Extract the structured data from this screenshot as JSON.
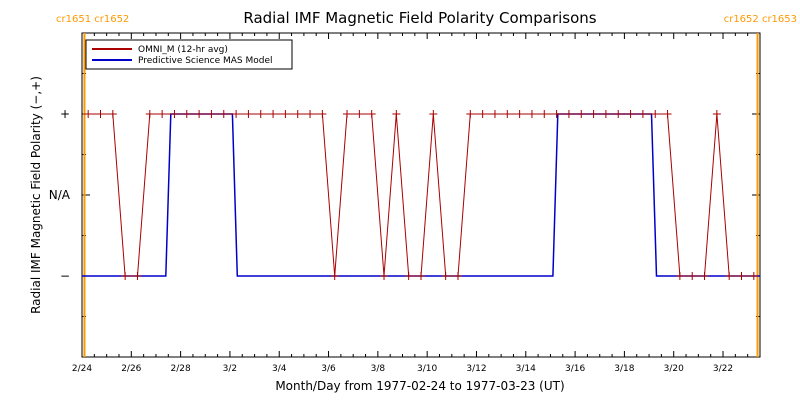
{
  "chart_data": {
    "type": "line",
    "title": "Radial IMF Magnetic Field Polarity Comparisons",
    "xlabel": "Month/Day from 1977-02-24 to 1977-03-23 (UT)",
    "ylabel": "Radial IMF Magnetic Field Polarity (−,+)",
    "x_tick_labels": [
      "2/24",
      "2/26",
      "2/28",
      "3/2",
      "3/4",
      "3/6",
      "3/8",
      "3/10",
      "3/12",
      "3/14",
      "3/16",
      "3/18",
      "3/20",
      "3/22"
    ],
    "y_tick_labels": [
      {
        "label": "+",
        "value": 1
      },
      {
        "label": "N/A",
        "value": 0
      },
      {
        "label": "−",
        "value": -1
      }
    ],
    "xlim_days": [
      0,
      27.5
    ],
    "ylim": [
      -2,
      2
    ],
    "carrington_markers": [
      {
        "day": 0.1,
        "text": "cr1651  cr1652",
        "color": "#ff9900"
      },
      {
        "day": 27.4,
        "text": "cr1652  cr1653",
        "color": "#ff9900"
      }
    ],
    "legend_position": "top-left",
    "series": [
      {
        "name": "OMNI_M (12-hr avg)",
        "color": "#aa0000",
        "marker": "+",
        "x_days": [
          0.25,
          0.75,
          1.25,
          1.75,
          2.25,
          2.75,
          3.25,
          3.75,
          4.25,
          4.75,
          5.25,
          5.75,
          6.25,
          6.75,
          7.25,
          7.75,
          8.25,
          8.75,
          9.25,
          9.75,
          10.25,
          10.75,
          11.25,
          11.75,
          12.25,
          12.75,
          13.25,
          13.75,
          14.25,
          14.75,
          15.25,
          15.75,
          16.25,
          16.75,
          17.25,
          17.75,
          18.25,
          18.75,
          19.25,
          19.75,
          20.25,
          20.75,
          21.25,
          21.75,
          22.25,
          22.75,
          23.25,
          23.75,
          24.25,
          24.75,
          25.25,
          25.75,
          26.25,
          26.75,
          27.25
        ],
        "values": [
          1,
          1,
          1,
          -1,
          -1,
          1,
          1,
          1,
          1,
          1,
          1,
          1,
          1,
          1,
          1,
          1,
          1,
          1,
          1,
          1,
          -1,
          1,
          1,
          1,
          -1,
          1,
          -1,
          -1,
          1,
          -1,
          -1,
          1,
          1,
          1,
          1,
          1,
          1,
          1,
          1,
          1,
          1,
          1,
          1,
          1,
          1,
          1,
          1,
          1,
          -1,
          -1,
          -1,
          1,
          -1,
          -1,
          -1
        ]
      },
      {
        "name": "Predictive Science MAS Model",
        "color": "#0000cc",
        "step_x_days": [
          0,
          3.4,
          3.6,
          6.1,
          6.3,
          19.1,
          19.3,
          23.1,
          23.3,
          27.5
        ],
        "step_values": [
          -1,
          -1,
          1,
          1,
          -1,
          -1,
          1,
          1,
          -1,
          -1
        ]
      }
    ]
  }
}
